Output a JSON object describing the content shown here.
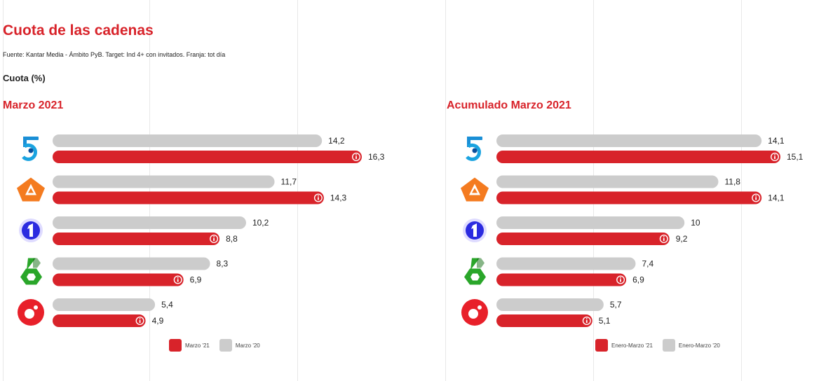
{
  "page": {
    "title": "Cuota de las cadenas",
    "source": "Fuente: Kantar Media - Ámbito PyB. Target: Ind 4+ con invitados. Franja: tot día",
    "metric_label": "Cuota (%)"
  },
  "colors": {
    "current": "#d8232a",
    "previous": "#cccccc",
    "title": "#d8232a"
  },
  "channels": [
    {
      "name": "Telecinco",
      "icon": "telecinco-5-logo-icon"
    },
    {
      "name": "Antena 3",
      "icon": "antena3-logo-icon"
    },
    {
      "name": "La 1",
      "icon": "la1-logo-icon"
    },
    {
      "name": "La Sexta",
      "icon": "lasexta-logo-icon"
    },
    {
      "name": "Cuatro",
      "icon": "cuatro-logo-icon"
    }
  ],
  "chart_data": [
    {
      "type": "bar",
      "orientation": "horizontal",
      "title": "Marzo 2021",
      "categories": [
        "Telecinco",
        "Antena 3",
        "La 1",
        "La Sexta",
        "Cuatro"
      ],
      "series": [
        {
          "name": "Marzo '20",
          "values": [
            14.2,
            11.7,
            10.2,
            8.3,
            5.4
          ],
          "labels": [
            "14,2",
            "11,7",
            "10,2",
            "8,3",
            "5,4"
          ],
          "color": "#cccccc"
        },
        {
          "name": "Marzo '21",
          "values": [
            16.3,
            14.3,
            8.8,
            6.9,
            4.9
          ],
          "labels": [
            "16,3",
            "14,3",
            "8,8",
            "6,9",
            "4,9"
          ],
          "color": "#d8232a"
        }
      ],
      "legend": [
        "Marzo '21",
        "Marzo '20"
      ],
      "legend_position": "bottom",
      "xlim": [
        0,
        20
      ],
      "grid": true
    },
    {
      "type": "bar",
      "orientation": "horizontal",
      "title": "Acumulado Marzo 2021",
      "categories": [
        "Telecinco",
        "Antena 3",
        "La 1",
        "La Sexta",
        "Cuatro"
      ],
      "series": [
        {
          "name": "Enero-Marzo '20",
          "values": [
            14.1,
            11.8,
            10,
            7.4,
            5.7
          ],
          "labels": [
            "14,1",
            "11,8",
            "10",
            "7,4",
            "5,7"
          ],
          "color": "#cccccc"
        },
        {
          "name": "Enero-Marzo '21",
          "values": [
            15.1,
            14.1,
            9.2,
            6.9,
            5.1
          ],
          "labels": [
            "15,1",
            "14,1",
            "9,2",
            "6,9",
            "5,1"
          ],
          "color": "#d8232a"
        }
      ],
      "legend": [
        "Enero-Marzo '21",
        "Enero-Marzo '20"
      ],
      "legend_position": "bottom",
      "xlim": [
        0,
        17
      ],
      "grid": true
    }
  ]
}
